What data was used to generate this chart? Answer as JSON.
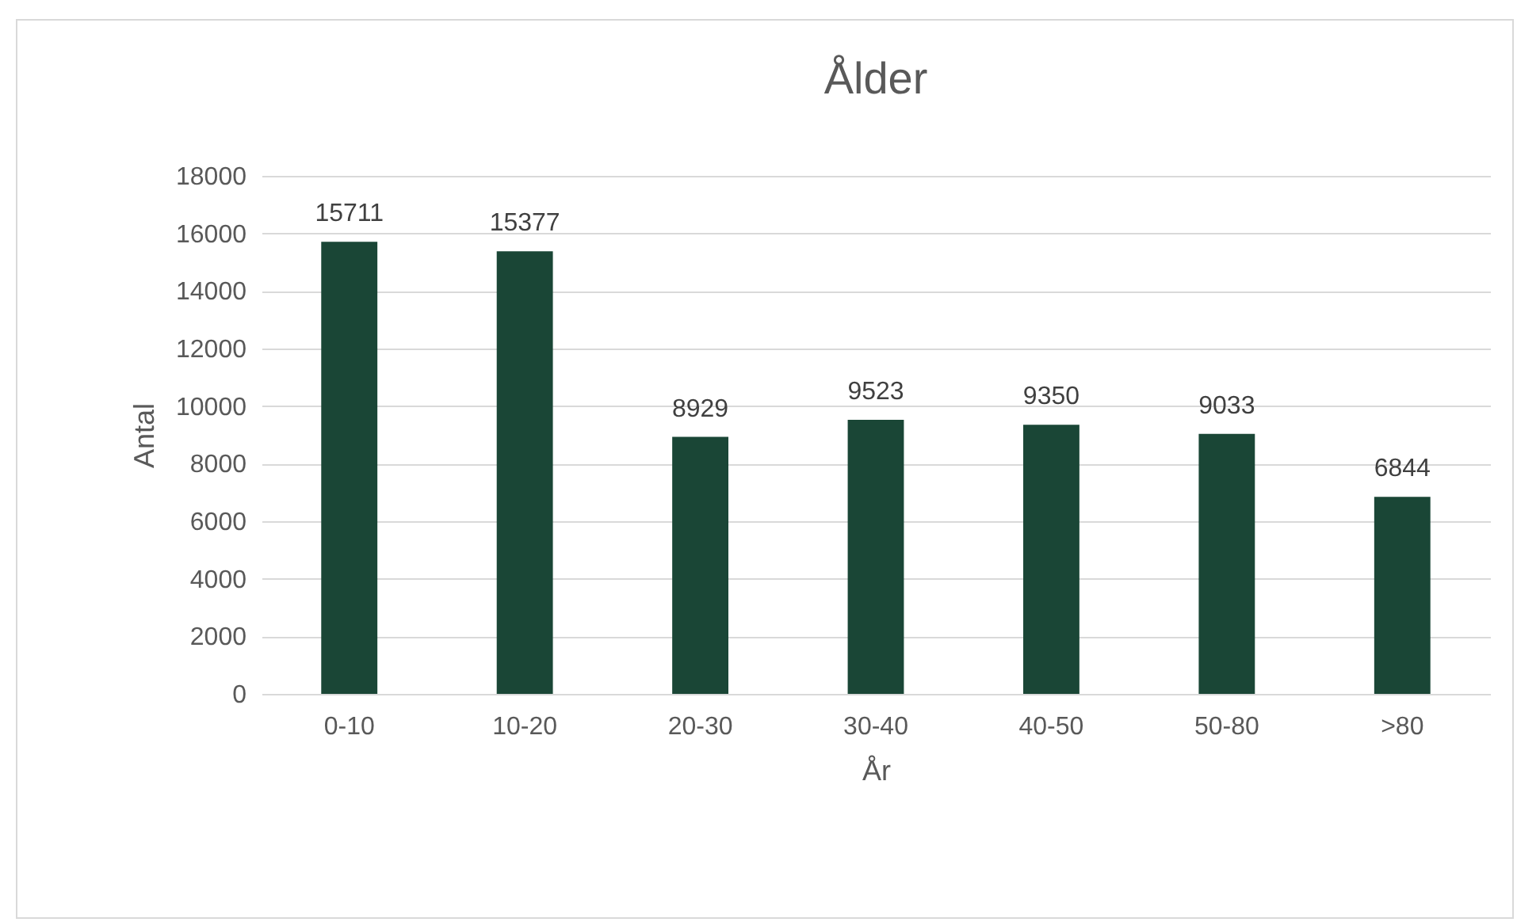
{
  "chart_data": {
    "type": "bar",
    "title": "Ålder",
    "xlabel": "År",
    "ylabel": "Antal",
    "categories": [
      "0-10",
      "10-20",
      "20-30",
      "30-40",
      "40-50",
      "50-80",
      ">80"
    ],
    "values": [
      15711,
      15377,
      8929,
      9523,
      9350,
      9033,
      6844
    ],
    "color": "#1a4636",
    "ylim": [
      0,
      18000
    ],
    "yticks": [
      0,
      2000,
      4000,
      6000,
      8000,
      10000,
      12000,
      14000,
      16000,
      18000
    ],
    "grid": "y",
    "data_labels": true
  }
}
